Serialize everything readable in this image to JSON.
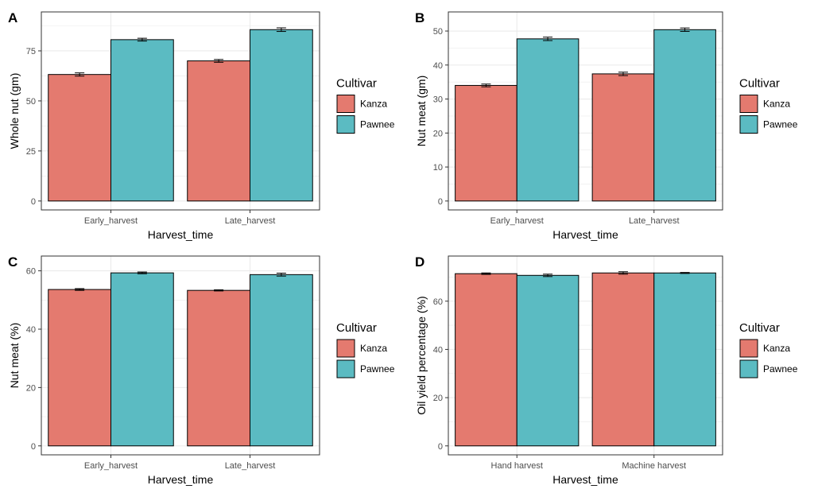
{
  "colors": {
    "Kanza": "#E47A6F",
    "Pawnee": "#5BBBC2",
    "grid": "#ebebeb",
    "border": "#333333"
  },
  "chart_data": [
    {
      "type": "bar",
      "panel": "A",
      "xlabel": "Harvest_time",
      "ylabel": "Whole nut (gm)",
      "categories": [
        "Early_harvest",
        "Late_harvest"
      ],
      "series": [
        {
          "name": "Kanza",
          "values": [
            63.2,
            70.0
          ],
          "errors": [
            0.8,
            0.7
          ]
        },
        {
          "name": "Pawnee",
          "values": [
            80.6,
            85.6
          ],
          "errors": [
            0.7,
            0.9
          ]
        }
      ],
      "ylim": [
        0,
        90
      ],
      "yticks": [
        0,
        25,
        50,
        75
      ],
      "legend": {
        "title": "Cultivar",
        "position": "right"
      },
      "grid": true
    },
    {
      "type": "bar",
      "panel": "B",
      "xlabel": "Harvest_time",
      "ylabel": "Nut meat (gm)",
      "categories": [
        "Early_harvest",
        "Late_harvest"
      ],
      "series": [
        {
          "name": "Kanza",
          "values": [
            34.0,
            37.4
          ],
          "errors": [
            0.4,
            0.5
          ]
        },
        {
          "name": "Pawnee",
          "values": [
            47.7,
            50.4
          ],
          "errors": [
            0.5,
            0.5
          ]
        }
      ],
      "ylim": [
        0,
        53
      ],
      "yticks": [
        0,
        10,
        20,
        30,
        40,
        50
      ],
      "legend": {
        "title": "Cultivar",
        "position": "right"
      },
      "grid": true
    },
    {
      "type": "bar",
      "panel": "C",
      "xlabel": "Harvest_time",
      "ylabel": "Nut meat (%)",
      "categories": [
        "Early_harvest",
        "Late_harvest"
      ],
      "series": [
        {
          "name": "Kanza",
          "values": [
            53.6,
            53.3
          ],
          "errors": [
            0.3,
            0.2
          ]
        },
        {
          "name": "Pawnee",
          "values": [
            59.3,
            58.7
          ],
          "errors": [
            0.3,
            0.5
          ]
        }
      ],
      "ylim": [
        0,
        62
      ],
      "yticks": [
        0,
        20,
        40,
        60
      ],
      "legend": {
        "title": "Cultivar",
        "position": "right"
      },
      "grid": true
    },
    {
      "type": "bar",
      "panel": "D",
      "xlabel": "Harvest_time",
      "ylabel": "Oil yield percentage (%)",
      "categories": [
        "Hand harvest",
        "Machine harvest"
      ],
      "series": [
        {
          "name": "Kanza",
          "values": [
            71.4,
            71.7
          ],
          "errors": [
            0.3,
            0.5
          ]
        },
        {
          "name": "Pawnee",
          "values": [
            70.7,
            71.7
          ],
          "errors": [
            0.5,
            0.2
          ]
        }
      ],
      "ylim": [
        0,
        75
      ],
      "yticks": [
        0,
        20,
        40,
        60
      ],
      "legend": {
        "title": "Cultivar",
        "position": "right"
      },
      "grid": true
    }
  ]
}
